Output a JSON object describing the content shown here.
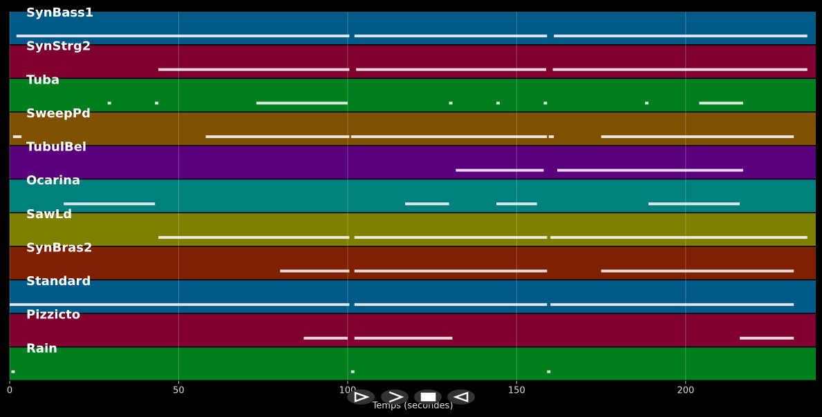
{
  "chart_data": {
    "type": "timeline",
    "xlabel": "Temps (secondes)",
    "xlim": [
      0,
      238.5
    ],
    "xticks": [
      0,
      50,
      100,
      150,
      200
    ],
    "grid": true,
    "tracks": [
      {
        "name": "SynBass1",
        "color": "#005a87",
        "segments": [
          [
            2,
            100.5
          ],
          [
            102,
            159
          ],
          [
            161,
            236
          ]
        ]
      },
      {
        "name": "SynStrg2",
        "color": "#7f0030",
        "segments": [
          [
            44,
            100.5
          ],
          [
            102.5,
            158.7
          ],
          [
            160.7,
            236
          ]
        ]
      },
      {
        "name": "Tuba",
        "color": "#007f1f",
        "segments": [
          [
            29,
            30
          ],
          [
            43,
            44
          ],
          [
            73,
            100
          ],
          [
            130,
            131
          ],
          [
            144,
            145
          ],
          [
            158,
            159
          ],
          [
            188,
            189
          ],
          [
            204,
            217
          ]
        ]
      },
      {
        "name": "SweepPd",
        "color": "#7f5000",
        "segments": [
          [
            1,
            3.5
          ],
          [
            58,
            100.5
          ],
          [
            101,
            159
          ],
          [
            159.5,
            161
          ],
          [
            175,
            232
          ]
        ]
      },
      {
        "name": "TubulBel",
        "color": "#5a007f",
        "segments": [
          [
            132,
            158
          ],
          [
            162,
            217
          ]
        ]
      },
      {
        "name": "Ocarina",
        "color": "#007f7f",
        "segments": [
          [
            16,
            43
          ],
          [
            117,
            130
          ],
          [
            144,
            156
          ],
          [
            189,
            216
          ]
        ]
      },
      {
        "name": "SawLd",
        "color": "#7f7f00",
        "segments": [
          [
            44,
            100.5
          ],
          [
            102,
            159
          ],
          [
            160,
            236
          ]
        ]
      },
      {
        "name": "SynBras2",
        "color": "#7f2000",
        "segments": [
          [
            80,
            100.5
          ],
          [
            102,
            159
          ],
          [
            175,
            232
          ]
        ]
      },
      {
        "name": "Standard",
        "color": "#005a87",
        "segments": [
          [
            0,
            100.5
          ],
          [
            102,
            159
          ],
          [
            160,
            232
          ]
        ]
      },
      {
        "name": "Pizzicto",
        "color": "#7f0030",
        "segments": [
          [
            87,
            100
          ],
          [
            102,
            131
          ],
          [
            216,
            232
          ]
        ]
      },
      {
        "name": "Rain",
        "color": "#007f1f",
        "segments": [
          [
            0.5,
            1.5
          ],
          [
            101,
            102
          ],
          [
            159,
            160
          ]
        ]
      }
    ]
  }
}
